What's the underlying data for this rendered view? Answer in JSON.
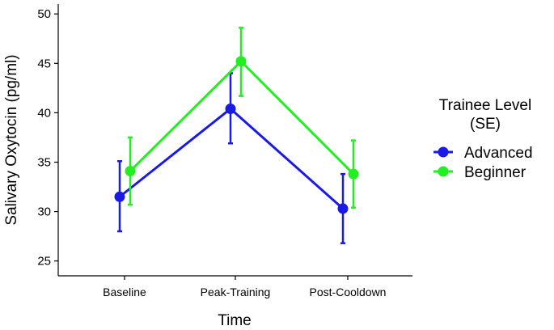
{
  "chart_data": {
    "type": "line",
    "xlabel": "Time",
    "ylabel": "Salivary Oxytocin (pg/ml)",
    "categories": [
      "Baseline",
      "Peak-Training",
      "Post-Cooldown"
    ],
    "ylim": [
      23.5,
      51
    ],
    "yticks": [
      25,
      30,
      35,
      40,
      45,
      50
    ],
    "legend": {
      "title_lines": [
        "Trainee Level",
        "(SE)"
      ],
      "placement": "right"
    },
    "series": [
      {
        "name": "Advanced",
        "color": "#1a1ae6",
        "values": [
          31.5,
          40.4,
          30.3
        ],
        "error_low": [
          28.0,
          36.9,
          26.8
        ],
        "error_high": [
          35.1,
          44.0,
          33.8
        ]
      },
      {
        "name": "Beginner",
        "color": "#22ee22",
        "values": [
          34.1,
          45.2,
          33.8
        ],
        "error_low": [
          30.7,
          41.7,
          30.4
        ],
        "error_high": [
          37.5,
          48.6,
          37.2
        ]
      }
    ],
    "grid": false
  }
}
